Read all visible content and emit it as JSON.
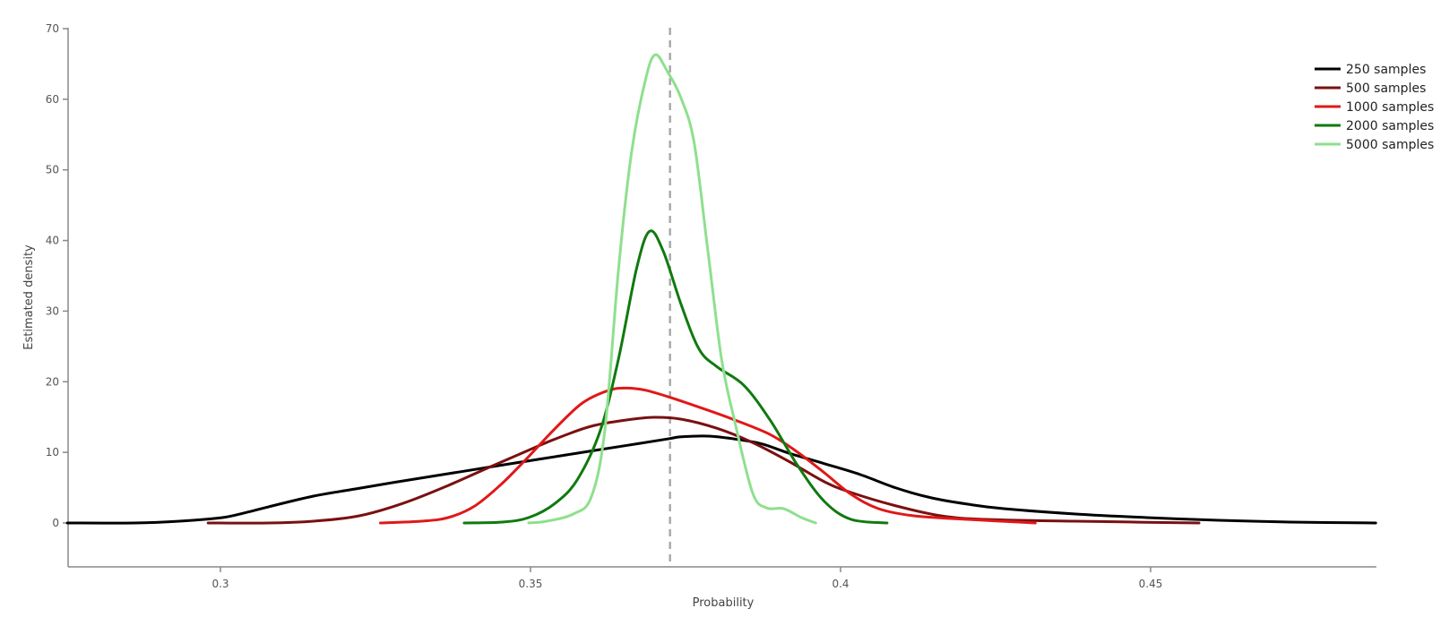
{
  "chart_data": {
    "type": "line",
    "title": "",
    "xlabel": "Probability",
    "ylabel": "Estimated density",
    "xlim": [
      0.275,
      0.4886
    ],
    "ylim": [
      -6,
      70
    ],
    "x_ticks": [
      0.3,
      0.35,
      0.4,
      0.45
    ],
    "x_tick_labels": [
      "0.3",
      "0.35",
      "0.4",
      "0.45"
    ],
    "y_ticks": [
      0,
      10,
      20,
      30,
      40,
      50,
      60,
      70
    ],
    "y_tick_labels": [
      "0",
      "10",
      "20",
      "30",
      "40",
      "50",
      "60",
      "70"
    ],
    "grid": false,
    "legend_position": "top-right",
    "reference_line": {
      "x": 0.3725,
      "style": "dashed",
      "color": "#aaaaaa"
    },
    "series": [
      {
        "name": "250 samples",
        "color": "#000000",
        "points": [
          [
            0.2753,
            0
          ],
          [
            0.2861,
            0
          ],
          [
            0.2934,
            0.25
          ],
          [
            0.3003,
            0.76
          ],
          [
            0.3042,
            1.5
          ],
          [
            0.3078,
            2.3
          ],
          [
            0.315,
            3.8
          ],
          [
            0.3223,
            4.9
          ],
          [
            0.3295,
            5.96
          ],
          [
            0.3367,
            6.97
          ],
          [
            0.3439,
            7.99
          ],
          [
            0.3512,
            9.0
          ],
          [
            0.3584,
            10.0
          ],
          [
            0.3656,
            11.0
          ],
          [
            0.3721,
            11.9
          ],
          [
            0.3743,
            12.2
          ],
          [
            0.3786,
            12.3
          ],
          [
            0.3829,
            11.9
          ],
          [
            0.3873,
            11.2
          ],
          [
            0.3916,
            9.9
          ],
          [
            0.3974,
            8.4
          ],
          [
            0.4032,
            6.85
          ],
          [
            0.409,
            4.94
          ],
          [
            0.4147,
            3.55
          ],
          [
            0.4205,
            2.66
          ],
          [
            0.4263,
            2.03
          ],
          [
            0.4379,
            1.27
          ],
          [
            0.4494,
            0.76
          ],
          [
            0.461,
            0.38
          ],
          [
            0.4725,
            0.13
          ],
          [
            0.4863,
            0
          ]
        ]
      },
      {
        "name": "500 samples",
        "color": "#7a1010",
        "points": [
          [
            0.298,
            0
          ],
          [
            0.3078,
            0
          ],
          [
            0.315,
            0.25
          ],
          [
            0.3223,
            1.0
          ],
          [
            0.3295,
            2.8
          ],
          [
            0.3367,
            5.3
          ],
          [
            0.3439,
            8.1
          ],
          [
            0.3497,
            10.3
          ],
          [
            0.354,
            11.9
          ],
          [
            0.3598,
            13.7
          ],
          [
            0.3656,
            14.6
          ],
          [
            0.3699,
            14.96
          ],
          [
            0.3743,
            14.7
          ],
          [
            0.3801,
            13.4
          ],
          [
            0.3858,
            11.4
          ],
          [
            0.3916,
            8.75
          ],
          [
            0.3974,
            5.83
          ],
          [
            0.4017,
            4.31
          ],
          [
            0.409,
            2.41
          ],
          [
            0.4162,
            1.01
          ],
          [
            0.4234,
            0.51
          ],
          [
            0.4379,
            0.25
          ],
          [
            0.4578,
            0
          ]
        ]
      },
      {
        "name": "1000 samples",
        "color": "#e01818",
        "points": [
          [
            0.3258,
            0
          ],
          [
            0.3324,
            0.25
          ],
          [
            0.3367,
            0.76
          ],
          [
            0.341,
            2.4
          ],
          [
            0.3454,
            5.58
          ],
          [
            0.3497,
            9.4
          ],
          [
            0.354,
            13.4
          ],
          [
            0.3584,
            17.0
          ],
          [
            0.3627,
            18.8
          ],
          [
            0.3656,
            19.1
          ],
          [
            0.3685,
            18.8
          ],
          [
            0.3721,
            17.9
          ],
          [
            0.3772,
            16.4
          ],
          [
            0.3829,
            14.6
          ],
          [
            0.3887,
            12.5
          ],
          [
            0.3931,
            10.0
          ],
          [
            0.3974,
            7.1
          ],
          [
            0.4017,
            4.06
          ],
          [
            0.4061,
            2.03
          ],
          [
            0.4118,
            1.01
          ],
          [
            0.4205,
            0.51
          ],
          [
            0.4314,
            0
          ]
        ]
      },
      {
        "name": "2000 samples",
        "color": "#0f7a0f",
        "points": [
          [
            0.3393,
            0
          ],
          [
            0.3454,
            0.13
          ],
          [
            0.3497,
            0.76
          ],
          [
            0.354,
            2.8
          ],
          [
            0.3576,
            6.2
          ],
          [
            0.3613,
            13.2
          ],
          [
            0.3642,
            23.3
          ],
          [
            0.3671,
            36.0
          ],
          [
            0.3692,
            41.3
          ],
          [
            0.3714,
            38.5
          ],
          [
            0.3743,
            30.9
          ],
          [
            0.3772,
            24.6
          ],
          [
            0.3801,
            22.1
          ],
          [
            0.3844,
            19.5
          ],
          [
            0.3887,
            14.5
          ],
          [
            0.3931,
            8.1
          ],
          [
            0.3974,
            3.04
          ],
          [
            0.4017,
            0.51
          ],
          [
            0.4075,
            0
          ]
        ]
      },
      {
        "name": "5000 samples",
        "color": "#8ee08e",
        "points": [
          [
            0.3497,
            0
          ],
          [
            0.3526,
            0.25
          ],
          [
            0.3569,
            1.27
          ],
          [
            0.3598,
            3.67
          ],
          [
            0.362,
            13.2
          ],
          [
            0.3642,
            36.0
          ],
          [
            0.3663,
            52.5
          ],
          [
            0.3685,
            62.6
          ],
          [
            0.3701,
            66.3
          ],
          [
            0.3721,
            63.9
          ],
          [
            0.3743,
            60.1
          ],
          [
            0.3764,
            53.8
          ],
          [
            0.3786,
            38.6
          ],
          [
            0.3808,
            23.3
          ],
          [
            0.3829,
            14.5
          ],
          [
            0.3858,
            4.31
          ],
          [
            0.388,
            2.16
          ],
          [
            0.3908,
            2.03
          ],
          [
            0.3937,
            0.76
          ],
          [
            0.396,
            0
          ]
        ]
      }
    ]
  },
  "legend": {
    "items": [
      {
        "label": "250 samples",
        "color": "#000000"
      },
      {
        "label": "500 samples",
        "color": "#7a1010"
      },
      {
        "label": "1000 samples",
        "color": "#e01818"
      },
      {
        "label": "2000 samples",
        "color": "#0f7a0f"
      },
      {
        "label": "5000 samples",
        "color": "#8ee08e"
      }
    ]
  },
  "axes": {
    "x_title": "Probability",
    "y_title": "Estimated density"
  }
}
